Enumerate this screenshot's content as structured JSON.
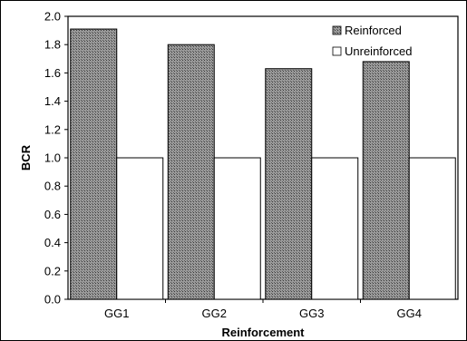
{
  "chart_data": {
    "type": "bar",
    "categories": [
      "GG1",
      "GG2",
      "GG3",
      "GG4"
    ],
    "series": [
      {
        "name": "Reinforced",
        "values": [
          1.91,
          1.8,
          1.63,
          1.68
        ],
        "fill": "#8a8a8a",
        "pattern": "crosshatch"
      },
      {
        "name": "Unreinforced",
        "values": [
          1.0,
          1.0,
          1.0,
          1.0
        ],
        "fill": "#ffffff"
      }
    ],
    "title": "",
    "xlabel": "Reinforcement",
    "ylabel": "BCR",
    "ylim": [
      0,
      2.0
    ],
    "yticks": [
      "0.0",
      "0.2",
      "0.4",
      "0.6",
      "0.8",
      "1.0",
      "1.2",
      "1.4",
      "1.6",
      "1.8",
      "2.0"
    ],
    "grid": false,
    "legend": "top-right"
  }
}
